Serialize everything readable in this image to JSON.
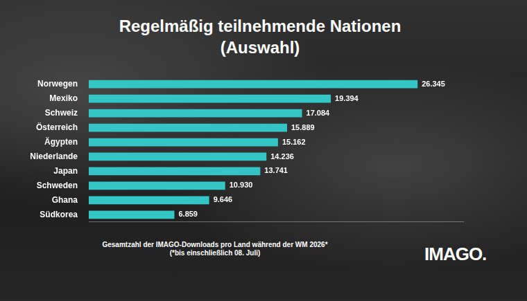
{
  "chart_data": {
    "type": "bar",
    "orientation": "horizontal",
    "title": "Regelmäßig teilnehmende Nationen (Auswahl)",
    "categories": [
      "Norwegen",
      "Mexiko",
      "Schweiz",
      "Österreich",
      "Ägypten",
      "Niederlande",
      "Japan",
      "Schweden",
      "Ghana",
      "Südkorea"
    ],
    "values": [
      26345,
      19394,
      17084,
      15889,
      15162,
      14236,
      13741,
      10930,
      9646,
      6859
    ],
    "value_labels": [
      "26.345",
      "19.394",
      "17.084",
      "15.889",
      "15.162",
      "14.236",
      "13.741",
      "10.930",
      "9.646",
      "6.859"
    ],
    "color": "#34c6c6",
    "xlim": [
      0,
      30000
    ],
    "grid": false,
    "data_labels": true,
    "tick_labels": "y",
    "notes": [
      "Gesamtzahl der IMAGO-Downloads pro Land während der WM 2026*",
      "(*bis einschließlich 08. Juli)"
    ],
    "logo": "IMAGO."
  }
}
